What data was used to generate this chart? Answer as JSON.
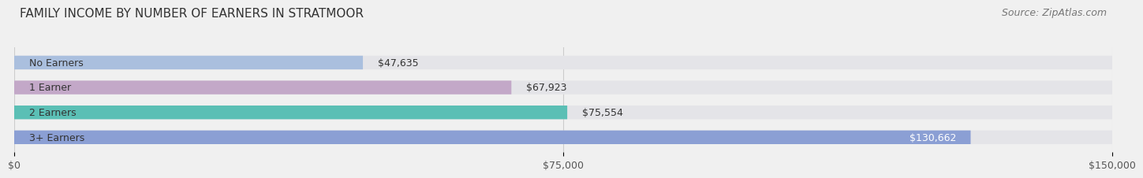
{
  "title": "FAMILY INCOME BY NUMBER OF EARNERS IN STRATMOOR",
  "source": "Source: ZipAtlas.com",
  "categories": [
    "No Earners",
    "1 Earner",
    "2 Earners",
    "3+ Earners"
  ],
  "values": [
    47635,
    67923,
    75554,
    130662
  ],
  "value_labels": [
    "$47,635",
    "$67,923",
    "$75,554",
    "$130,662"
  ],
  "bar_colors": [
    "#aabfde",
    "#c3a8c8",
    "#5bbfb5",
    "#8b9fd4"
  ],
  "xlim": [
    0,
    150000
  ],
  "xtick_values": [
    0,
    75000,
    150000
  ],
  "xtick_labels": [
    "$0",
    "$75,000",
    "$150,000"
  ],
  "background_color": "#f0f0f0",
  "title_fontsize": 11,
  "source_fontsize": 9,
  "label_fontsize": 9,
  "value_fontsize": 9,
  "tick_fontsize": 9,
  "bar_height": 0.55,
  "fig_width": 14.06,
  "fig_height": 2.33
}
